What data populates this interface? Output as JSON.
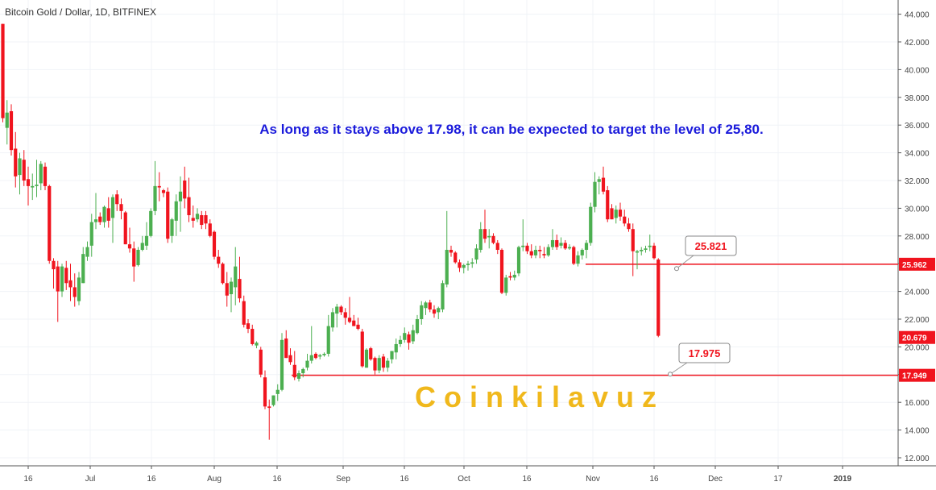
{
  "chart_data": {
    "type": "candlestick",
    "title": "Bitcoin Gold / Dollar, 1D, BITFINEX",
    "annotation": "As long as it stays above 17.98, it can be expected to target the level of 25,80.",
    "watermark": "C o i n k i l a v u z",
    "ylim": [
      11.2,
      45.0
    ],
    "y_ticks": [
      "44.000",
      "42.000",
      "40.000",
      "38.000",
      "36.000",
      "34.000",
      "32.000",
      "30.000",
      "28.000",
      "26.000",
      "24.000",
      "22.000",
      "20.000",
      "18.000",
      "16.000",
      "14.000",
      "12.000"
    ],
    "x_ticks": [
      "16",
      "Jul",
      "16",
      "Aug",
      "16",
      "Sep",
      "16",
      "Oct",
      "16",
      "Nov",
      "16",
      "Dec",
      "17",
      "2019"
    ],
    "grid": true,
    "colors": {
      "up": "#4caf50",
      "down": "#f0141e",
      "line": "#f0141e",
      "text_blue": "#1a1adb",
      "watermark": "#f0b81c"
    },
    "horizontal_levels": [
      {
        "price": 25.962,
        "label": "25.962"
      },
      {
        "price": 17.949,
        "label": "17.949"
      }
    ],
    "price_badges": [
      {
        "price": 20.679,
        "label": "20.679"
      }
    ],
    "callouts": [
      {
        "label": "25.821",
        "price": 25.821
      },
      {
        "label": "17.975",
        "price": 17.975
      }
    ],
    "candles": [
      {
        "o": 43.3,
        "h": 43.3,
        "l": 36.2,
        "c": 36.5
      },
      {
        "o": 35.8,
        "h": 37.8,
        "l": 34.6,
        "c": 36.9
      },
      {
        "o": 37.0,
        "h": 37.5,
        "l": 33.8,
        "c": 34.2
      },
      {
        "o": 34.3,
        "h": 35.5,
        "l": 31.5,
        "c": 32.3
      },
      {
        "o": 32.4,
        "h": 34.0,
        "l": 31.0,
        "c": 33.6
      },
      {
        "o": 33.5,
        "h": 34.2,
        "l": 31.6,
        "c": 32.0
      },
      {
        "o": 32.1,
        "h": 33.0,
        "l": 30.2,
        "c": 31.6
      },
      {
        "o": 31.5,
        "h": 32.5,
        "l": 30.6,
        "c": 31.6
      },
      {
        "o": 31.6,
        "h": 33.5,
        "l": 30.8,
        "c": 31.7
      },
      {
        "o": 31.8,
        "h": 33.4,
        "l": 31.3,
        "c": 33.2
      },
      {
        "o": 33.0,
        "h": 33.3,
        "l": 31.3,
        "c": 31.6
      },
      {
        "o": 31.6,
        "h": 31.7,
        "l": 26.0,
        "c": 26.2
      },
      {
        "o": 26.2,
        "h": 26.4,
        "l": 24.2,
        "c": 25.6
      },
      {
        "o": 25.8,
        "h": 26.2,
        "l": 21.8,
        "c": 24.0
      },
      {
        "o": 24.0,
        "h": 26.0,
        "l": 23.6,
        "c": 25.8
      },
      {
        "o": 25.7,
        "h": 26.2,
        "l": 24.1,
        "c": 24.6
      },
      {
        "o": 24.8,
        "h": 26.0,
        "l": 23.3,
        "c": 24.3
      },
      {
        "o": 24.3,
        "h": 25.3,
        "l": 22.9,
        "c": 23.6
      },
      {
        "o": 23.3,
        "h": 25.4,
        "l": 23.0,
        "c": 25.0
      },
      {
        "o": 24.6,
        "h": 27.2,
        "l": 24.6,
        "c": 26.7
      },
      {
        "o": 26.5,
        "h": 27.6,
        "l": 26.2,
        "c": 27.2
      },
      {
        "o": 27.3,
        "h": 29.6,
        "l": 26.5,
        "c": 29.0
      },
      {
        "o": 29.0,
        "h": 31.1,
        "l": 28.5,
        "c": 29.2
      },
      {
        "o": 29.4,
        "h": 29.7,
        "l": 28.8,
        "c": 29.0
      },
      {
        "o": 29.0,
        "h": 30.2,
        "l": 28.6,
        "c": 30.1
      },
      {
        "o": 30.0,
        "h": 30.8,
        "l": 28.6,
        "c": 29.1
      },
      {
        "o": 29.3,
        "h": 31.0,
        "l": 27.5,
        "c": 30.8
      },
      {
        "o": 31.0,
        "h": 31.3,
        "l": 29.8,
        "c": 30.3
      },
      {
        "o": 30.3,
        "h": 30.7,
        "l": 29.2,
        "c": 29.8
      },
      {
        "o": 29.7,
        "h": 29.8,
        "l": 27.4,
        "c": 27.4
      },
      {
        "o": 27.4,
        "h": 28.6,
        "l": 26.8,
        "c": 27.1
      },
      {
        "o": 27.1,
        "h": 27.6,
        "l": 24.7,
        "c": 25.8
      },
      {
        "o": 25.9,
        "h": 27.2,
        "l": 25.8,
        "c": 27.0
      },
      {
        "o": 27.0,
        "h": 28.0,
        "l": 26.9,
        "c": 27.5
      },
      {
        "o": 27.3,
        "h": 29.0,
        "l": 27.0,
        "c": 28.0
      },
      {
        "o": 28.0,
        "h": 30.0,
        "l": 27.9,
        "c": 29.8
      },
      {
        "o": 29.8,
        "h": 33.4,
        "l": 29.5,
        "c": 31.6
      },
      {
        "o": 31.6,
        "h": 32.6,
        "l": 30.5,
        "c": 31.5
      },
      {
        "o": 31.3,
        "h": 31.4,
        "l": 30.8,
        "c": 31.1
      },
      {
        "o": 31.2,
        "h": 31.5,
        "l": 27.5,
        "c": 27.8
      },
      {
        "o": 28.0,
        "h": 29.3,
        "l": 27.5,
        "c": 29.2
      },
      {
        "o": 29.1,
        "h": 31.0,
        "l": 28.0,
        "c": 30.5
      },
      {
        "o": 30.5,
        "h": 32.3,
        "l": 28.3,
        "c": 31.2
      },
      {
        "o": 32.0,
        "h": 33.0,
        "l": 30.0,
        "c": 30.7
      },
      {
        "o": 30.8,
        "h": 32.2,
        "l": 29.0,
        "c": 29.5
      },
      {
        "o": 29.3,
        "h": 30.2,
        "l": 28.6,
        "c": 29.1
      },
      {
        "o": 29.2,
        "h": 30.0,
        "l": 29.0,
        "c": 29.6
      },
      {
        "o": 29.5,
        "h": 29.8,
        "l": 28.5,
        "c": 28.8
      },
      {
        "o": 29.5,
        "h": 29.8,
        "l": 28.5,
        "c": 28.9
      },
      {
        "o": 28.9,
        "h": 29.2,
        "l": 27.9,
        "c": 28.0
      },
      {
        "o": 28.3,
        "h": 28.4,
        "l": 26.3,
        "c": 26.5
      },
      {
        "o": 26.5,
        "h": 27.0,
        "l": 25.7,
        "c": 26.0
      },
      {
        "o": 26.0,
        "h": 26.1,
        "l": 24.5,
        "c": 24.6
      },
      {
        "o": 24.6,
        "h": 25.4,
        "l": 22.9,
        "c": 23.7
      },
      {
        "o": 23.8,
        "h": 25.0,
        "l": 22.5,
        "c": 24.7
      },
      {
        "o": 24.3,
        "h": 27.2,
        "l": 23.0,
        "c": 25.8
      },
      {
        "o": 24.9,
        "h": 26.5,
        "l": 23.2,
        "c": 23.5
      },
      {
        "o": 23.3,
        "h": 23.7,
        "l": 21.4,
        "c": 21.6
      },
      {
        "o": 21.7,
        "h": 22.0,
        "l": 21.0,
        "c": 21.3
      },
      {
        "o": 21.3,
        "h": 21.6,
        "l": 20.1,
        "c": 20.2
      },
      {
        "o": 20.1,
        "h": 20.4,
        "l": 19.9,
        "c": 20.3
      },
      {
        "o": 19.8,
        "h": 20.0,
        "l": 17.8,
        "c": 18.0
      },
      {
        "o": 17.8,
        "h": 18.3,
        "l": 15.5,
        "c": 15.7
      },
      {
        "o": 15.7,
        "h": 16.2,
        "l": 13.3,
        "c": 15.6
      },
      {
        "o": 15.8,
        "h": 16.5,
        "l": 15.7,
        "c": 16.5
      },
      {
        "o": 16.6,
        "h": 17.3,
        "l": 16.1,
        "c": 16.9
      },
      {
        "o": 16.9,
        "h": 21.0,
        "l": 16.8,
        "c": 20.5
      },
      {
        "o": 20.6,
        "h": 21.2,
        "l": 19.2,
        "c": 19.2
      },
      {
        "o": 19.4,
        "h": 19.9,
        "l": 18.7,
        "c": 18.9
      },
      {
        "o": 18.7,
        "h": 19.7,
        "l": 17.6,
        "c": 17.8
      },
      {
        "o": 17.7,
        "h": 18.3,
        "l": 17.5,
        "c": 18.1
      },
      {
        "o": 18.1,
        "h": 18.5,
        "l": 17.8,
        "c": 18.4
      },
      {
        "o": 18.5,
        "h": 19.5,
        "l": 18.3,
        "c": 19.0
      },
      {
        "o": 19.0,
        "h": 21.5,
        "l": 18.8,
        "c": 19.4
      },
      {
        "o": 19.5,
        "h": 19.6,
        "l": 19.1,
        "c": 19.2
      },
      {
        "o": 19.3,
        "h": 19.5,
        "l": 19.1,
        "c": 19.4
      },
      {
        "o": 19.4,
        "h": 19.6,
        "l": 19.3,
        "c": 19.5
      },
      {
        "o": 19.5,
        "h": 22.3,
        "l": 19.3,
        "c": 21.5
      },
      {
        "o": 21.4,
        "h": 22.8,
        "l": 21.1,
        "c": 22.5
      },
      {
        "o": 22.4,
        "h": 23.1,
        "l": 21.4,
        "c": 22.9
      },
      {
        "o": 22.9,
        "h": 23.0,
        "l": 22.3,
        "c": 22.5
      },
      {
        "o": 22.5,
        "h": 22.8,
        "l": 21.6,
        "c": 22.1
      },
      {
        "o": 22.1,
        "h": 23.6,
        "l": 21.7,
        "c": 21.8
      },
      {
        "o": 21.9,
        "h": 22.3,
        "l": 21.5,
        "c": 21.5
      },
      {
        "o": 21.6,
        "h": 22.1,
        "l": 21.2,
        "c": 21.3
      },
      {
        "o": 21.1,
        "h": 21.3,
        "l": 18.5,
        "c": 18.6
      },
      {
        "o": 18.5,
        "h": 19.9,
        "l": 18.5,
        "c": 19.8
      },
      {
        "o": 19.9,
        "h": 20.0,
        "l": 19.0,
        "c": 19.1
      },
      {
        "o": 19.2,
        "h": 19.3,
        "l": 18.0,
        "c": 18.3
      },
      {
        "o": 18.3,
        "h": 19.4,
        "l": 18.1,
        "c": 19.2
      },
      {
        "o": 19.3,
        "h": 19.5,
        "l": 18.2,
        "c": 18.5
      },
      {
        "o": 18.5,
        "h": 19.2,
        "l": 18.2,
        "c": 19.0
      },
      {
        "o": 19.1,
        "h": 19.7,
        "l": 18.8,
        "c": 19.7
      },
      {
        "o": 19.6,
        "h": 20.6,
        "l": 19.1,
        "c": 20.2
      },
      {
        "o": 20.2,
        "h": 20.8,
        "l": 20.0,
        "c": 20.5
      },
      {
        "o": 20.5,
        "h": 21.4,
        "l": 20.3,
        "c": 21.0
      },
      {
        "o": 20.9,
        "h": 21.1,
        "l": 19.8,
        "c": 20.3
      },
      {
        "o": 20.4,
        "h": 21.6,
        "l": 20.2,
        "c": 21.2
      },
      {
        "o": 21.0,
        "h": 22.3,
        "l": 20.9,
        "c": 22.0
      },
      {
        "o": 22.0,
        "h": 23.3,
        "l": 21.6,
        "c": 23.0
      },
      {
        "o": 22.8,
        "h": 23.3,
        "l": 22.3,
        "c": 23.2
      },
      {
        "o": 23.2,
        "h": 23.4,
        "l": 22.5,
        "c": 22.7
      },
      {
        "o": 22.7,
        "h": 23.0,
        "l": 22.1,
        "c": 22.4
      },
      {
        "o": 22.5,
        "h": 22.9,
        "l": 22.0,
        "c": 22.8
      },
      {
        "o": 22.7,
        "h": 24.8,
        "l": 22.5,
        "c": 24.6
      },
      {
        "o": 24.5,
        "h": 29.8,
        "l": 24.3,
        "c": 27.0
      },
      {
        "o": 27.0,
        "h": 27.3,
        "l": 26.5,
        "c": 26.8
      },
      {
        "o": 26.8,
        "h": 26.9,
        "l": 26.0,
        "c": 26.1
      },
      {
        "o": 26.1,
        "h": 26.3,
        "l": 25.4,
        "c": 25.7
      },
      {
        "o": 25.7,
        "h": 26.0,
        "l": 25.3,
        "c": 25.9
      },
      {
        "o": 25.9,
        "h": 26.2,
        "l": 25.5,
        "c": 26.0
      },
      {
        "o": 26.0,
        "h": 26.4,
        "l": 25.7,
        "c": 26.1
      },
      {
        "o": 26.3,
        "h": 27.4,
        "l": 26.0,
        "c": 27.1
      },
      {
        "o": 27.0,
        "h": 29.0,
        "l": 26.8,
        "c": 28.5
      },
      {
        "o": 28.5,
        "h": 29.9,
        "l": 27.5,
        "c": 27.8
      },
      {
        "o": 27.9,
        "h": 28.5,
        "l": 27.1,
        "c": 28.0
      },
      {
        "o": 28.0,
        "h": 28.2,
        "l": 27.4,
        "c": 27.5
      },
      {
        "o": 27.5,
        "h": 27.7,
        "l": 26.7,
        "c": 27.0
      },
      {
        "o": 27.0,
        "h": 27.1,
        "l": 23.8,
        "c": 23.9
      },
      {
        "o": 23.9,
        "h": 25.2,
        "l": 23.7,
        "c": 25.0
      },
      {
        "o": 25.1,
        "h": 25.4,
        "l": 24.8,
        "c": 25.0
      },
      {
        "o": 25.0,
        "h": 25.5,
        "l": 24.8,
        "c": 25.2
      },
      {
        "o": 25.3,
        "h": 27.3,
        "l": 25.1,
        "c": 27.2
      },
      {
        "o": 27.2,
        "h": 29.2,
        "l": 26.9,
        "c": 27.3
      },
      {
        "o": 27.3,
        "h": 27.5,
        "l": 26.7,
        "c": 26.9
      },
      {
        "o": 26.9,
        "h": 27.4,
        "l": 26.4,
        "c": 26.6
      },
      {
        "o": 26.6,
        "h": 27.3,
        "l": 26.4,
        "c": 27.0
      },
      {
        "o": 27.0,
        "h": 27.3,
        "l": 26.4,
        "c": 26.9
      },
      {
        "o": 26.7,
        "h": 27.2,
        "l": 26.4,
        "c": 26.6
      },
      {
        "o": 26.6,
        "h": 27.4,
        "l": 26.5,
        "c": 27.2
      },
      {
        "o": 27.2,
        "h": 28.5,
        "l": 27.0,
        "c": 27.7
      },
      {
        "o": 27.7,
        "h": 28.1,
        "l": 27.0,
        "c": 27.2
      },
      {
        "o": 27.3,
        "h": 27.9,
        "l": 27.1,
        "c": 27.5
      },
      {
        "o": 27.5,
        "h": 27.7,
        "l": 27.0,
        "c": 27.1
      },
      {
        "o": 27.1,
        "h": 27.4,
        "l": 27.0,
        "c": 27.2
      },
      {
        "o": 27.2,
        "h": 27.3,
        "l": 25.9,
        "c": 26.0
      },
      {
        "o": 26.0,
        "h": 26.9,
        "l": 25.8,
        "c": 26.6
      },
      {
        "o": 26.6,
        "h": 27.1,
        "l": 26.3,
        "c": 27.0
      },
      {
        "o": 27.0,
        "h": 27.7,
        "l": 26.4,
        "c": 27.5
      },
      {
        "o": 27.5,
        "h": 30.4,
        "l": 27.3,
        "c": 30.1
      },
      {
        "o": 30.1,
        "h": 32.6,
        "l": 29.7,
        "c": 31.9
      },
      {
        "o": 31.9,
        "h": 32.3,
        "l": 31.0,
        "c": 32.1
      },
      {
        "o": 32.2,
        "h": 33.0,
        "l": 31.0,
        "c": 31.2
      },
      {
        "o": 31.3,
        "h": 31.6,
        "l": 29.0,
        "c": 29.2
      },
      {
        "o": 30.0,
        "h": 30.3,
        "l": 29.2,
        "c": 29.2
      },
      {
        "o": 29.3,
        "h": 30.2,
        "l": 28.9,
        "c": 29.9
      },
      {
        "o": 29.9,
        "h": 30.4,
        "l": 29.1,
        "c": 29.4
      },
      {
        "o": 29.4,
        "h": 29.9,
        "l": 28.7,
        "c": 28.9
      },
      {
        "o": 28.9,
        "h": 29.3,
        "l": 28.3,
        "c": 28.5
      },
      {
        "o": 28.5,
        "h": 28.9,
        "l": 25.1,
        "c": 26.9
      },
      {
        "o": 26.8,
        "h": 27.0,
        "l": 25.6,
        "c": 26.9
      },
      {
        "o": 26.9,
        "h": 27.2,
        "l": 26.6,
        "c": 27.0
      },
      {
        "o": 27.0,
        "h": 27.3,
        "l": 26.8,
        "c": 27.1
      },
      {
        "o": 27.2,
        "h": 28.1,
        "l": 26.9,
        "c": 27.3
      },
      {
        "o": 27.3,
        "h": 27.5,
        "l": 26.3,
        "c": 26.4
      },
      {
        "o": 26.3,
        "h": 26.4,
        "l": 20.7,
        "c": 20.8
      }
    ]
  }
}
